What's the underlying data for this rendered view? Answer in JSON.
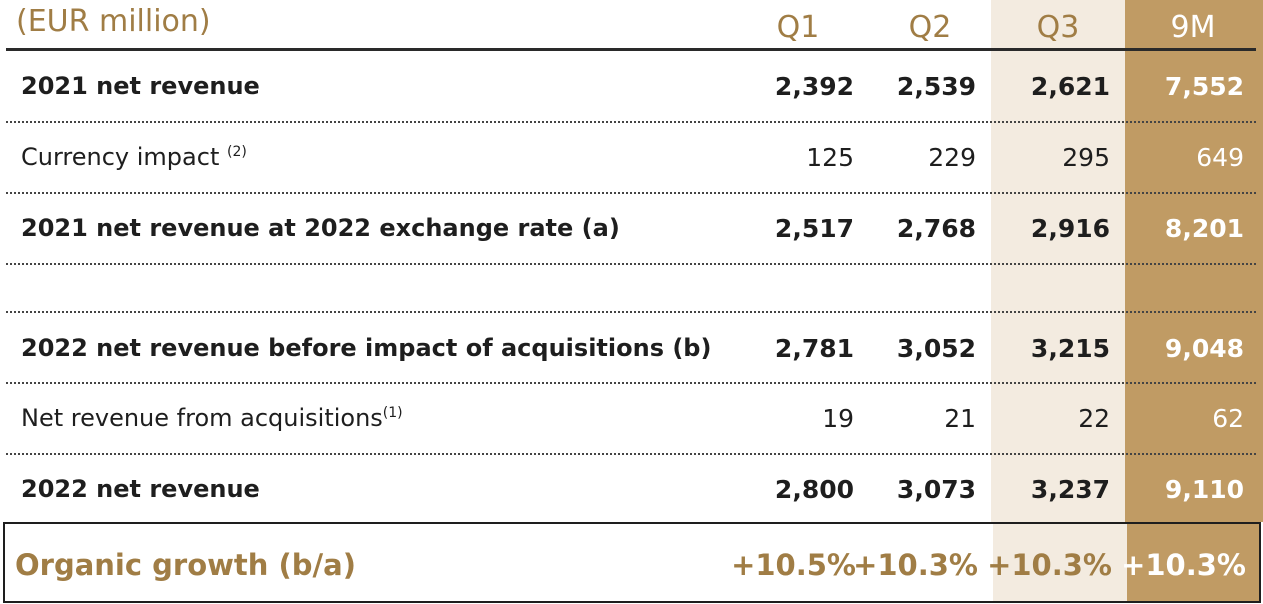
{
  "header": {
    "unit": "(EUR million)",
    "columns": [
      "Q1",
      "Q2",
      "Q3",
      "9M"
    ]
  },
  "rows": [
    {
      "label": "2021 net revenue",
      "sup": "",
      "bold": true,
      "values": [
        "2,392",
        "2,539",
        "2,621",
        "7,552"
      ]
    },
    {
      "label": "Currency impact ",
      "sup": "(2)",
      "bold": false,
      "values": [
        "125",
        "229",
        "295",
        "649"
      ]
    },
    {
      "label": "2021 net revenue at 2022 exchange rate (a)",
      "sup": "",
      "bold": true,
      "values": [
        "2,517",
        "2,768",
        "2,916",
        "8,201"
      ]
    },
    {
      "label": "2022 net revenue before impact of acquisitions (b)",
      "sup": "",
      "bold": true,
      "values": [
        "2,781",
        "3,052",
        "3,215",
        "9,048"
      ]
    },
    {
      "label": "Net revenue from acquisitions",
      "sup": "(1)",
      "bold": false,
      "values": [
        "19",
        "21",
        "22",
        "62"
      ]
    },
    {
      "label": "2022 net revenue",
      "sup": "",
      "bold": true,
      "values": [
        "2,800",
        "3,073",
        "3,237",
        "9,110"
      ]
    }
  ],
  "organic_growth": {
    "label": "Organic growth (b/a)",
    "values": [
      "+10.5%",
      "+10.3%",
      "+10.3%",
      "+10.3%"
    ]
  },
  "colors": {
    "gold": "#a07d45",
    "band_light": "#f3ebe0",
    "band_dark": "#c09b64"
  }
}
